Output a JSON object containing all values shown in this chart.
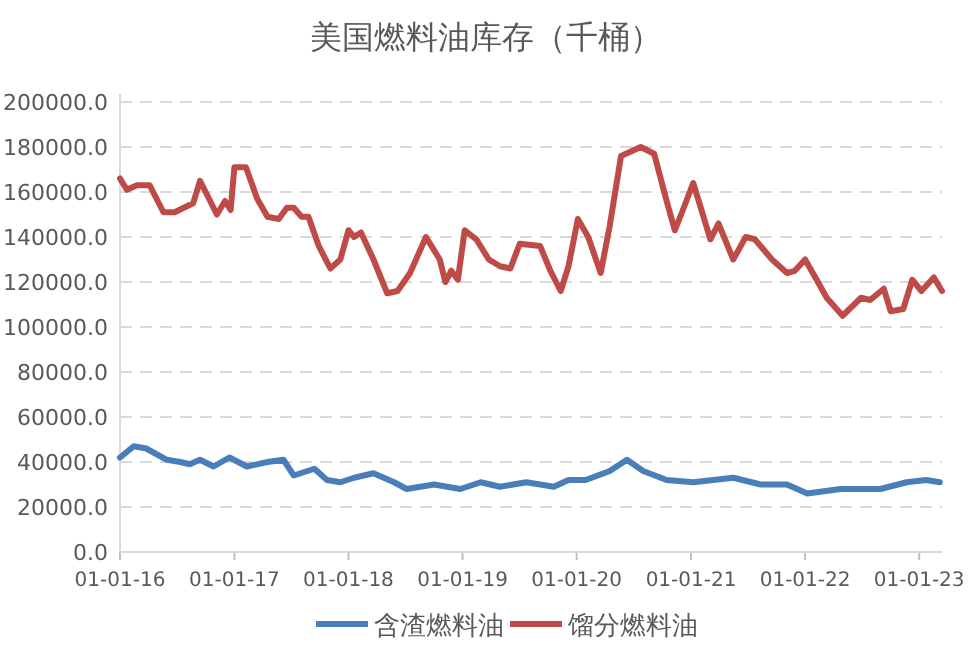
{
  "chart_data": {
    "type": "line",
    "title": "美国燃料油库存（千桶）",
    "xlim": [
      "2016-01-01",
      "2023-03-15"
    ],
    "xticks": [
      {
        "value": "2016-01-01",
        "label": "01-01-16"
      },
      {
        "value": "2017-01-01",
        "label": "01-01-17"
      },
      {
        "value": "2018-01-01",
        "label": "01-01-18"
      },
      {
        "value": "2019-01-01",
        "label": "01-01-19"
      },
      {
        "value": "2020-01-01",
        "label": "01-01-20"
      },
      {
        "value": "2021-01-01",
        "label": "01-01-21"
      },
      {
        "value": "2022-01-01",
        "label": "01-01-22"
      },
      {
        "value": "2023-01-01",
        "label": "01-01-23"
      }
    ],
    "ylim": [
      0,
      200000
    ],
    "yticks": [
      {
        "value": 0,
        "label": "0.0"
      },
      {
        "value": 20000,
        "label": "20000.0"
      },
      {
        "value": 40000,
        "label": "40000.0"
      },
      {
        "value": 60000,
        "label": "60000.0"
      },
      {
        "value": 80000,
        "label": "80000.0"
      },
      {
        "value": 100000,
        "label": "100000.0"
      },
      {
        "value": 120000,
        "label": "120000.0"
      },
      {
        "value": 140000,
        "label": "140000.0"
      },
      {
        "value": 160000,
        "label": "160000.0"
      },
      {
        "value": 180000,
        "label": "180000.0"
      },
      {
        "value": 200000,
        "label": "200000.0"
      }
    ],
    "grid": "y",
    "legend": "bottom",
    "series": [
      {
        "name": "含渣燃料油",
        "color": "#4a7ebb",
        "x": [
          "2016-01-01",
          "2016-02-14",
          "2016-03-25",
          "2016-05-30",
          "2016-07-12",
          "2016-08-11",
          "2016-09-13",
          "2016-10-26",
          "2016-12-16",
          "2017-02-10",
          "2017-04-17",
          "2017-06-07",
          "2017-07-10",
          "2017-09-14",
          "2017-10-24",
          "2017-12-06",
          "2018-01-19",
          "2018-03-22",
          "2018-05-27",
          "2018-07-06",
          "2018-10-02",
          "2018-12-25",
          "2019-02-28",
          "2019-05-01",
          "2019-07-24",
          "2019-10-20",
          "2019-12-06",
          "2020-01-30",
          "2020-04-16",
          "2020-06-10",
          "2020-08-01",
          "2020-10-15",
          "2021-01-08",
          "2021-05-16",
          "2021-08-12",
          "2021-11-04",
          "2022-01-08",
          "2022-04-24",
          "2022-08-30",
          "2022-11-22",
          "2023-01-23",
          "2023-03-08"
        ],
        "values": [
          42000,
          47000,
          46000,
          41000,
          40000,
          39000,
          41000,
          38000,
          42000,
          38000,
          40000,
          41000,
          34000,
          37000,
          32000,
          31000,
          33000,
          35000,
          31000,
          28000,
          30000,
          28000,
          31000,
          29000,
          31000,
          29000,
          32000,
          32000,
          36000,
          41000,
          36000,
          32000,
          31000,
          33000,
          30000,
          30000,
          26000,
          28000,
          28000,
          31000,
          32000,
          31000
        ]
      },
      {
        "name": "馏分燃料油",
        "color": "#be4b48",
        "x": [
          "2016-01-01",
          "2016-01-23",
          "2016-02-24",
          "2016-04-05",
          "2016-05-19",
          "2016-06-24",
          "2016-07-23",
          "2016-08-22",
          "2016-09-13",
          "2016-11-06",
          "2016-12-02",
          "2016-12-20",
          "2017-01-01",
          "2017-02-07",
          "2017-03-15",
          "2017-04-17",
          "2017-05-23",
          "2017-06-18",
          "2017-07-10",
          "2017-08-04",
          "2017-08-26",
          "2017-09-28",
          "2017-11-04",
          "2017-12-06",
          "2018-01-01",
          "2018-01-19",
          "2018-02-10",
          "2018-03-22",
          "2018-05-05",
          "2018-06-07",
          "2018-07-17",
          "2018-09-06",
          "2018-10-20",
          "2018-11-07",
          "2018-11-26",
          "2018-12-17",
          "2019-01-08",
          "2019-02-14",
          "2019-03-26",
          "2019-05-01",
          "2019-06-03",
          "2019-07-03",
          "2019-09-06",
          "2019-10-09",
          "2019-11-11",
          "2019-12-06",
          "2020-01-05",
          "2020-02-07",
          "2020-03-18",
          "2020-04-16",
          "2020-05-22",
          "2020-07-24",
          "2020-09-05",
          "2020-10-15",
          "2020-11-10",
          "2020-12-06",
          "2021-01-08",
          "2021-03-04",
          "2021-03-30",
          "2021-05-16",
          "2021-06-25",
          "2021-07-24",
          "2021-09-17",
          "2021-11-04",
          "2021-11-29",
          "2022-01-01",
          "2022-02-07",
          "2022-03-11",
          "2022-05-01",
          "2022-06-29",
          "2022-07-28",
          "2022-09-10",
          "2022-10-02",
          "2022-11-11",
          "2022-12-10",
          "2023-01-08",
          "2023-02-17",
          "2023-03-15"
        ],
        "values": [
          166000,
          161000,
          163000,
          163000,
          151000,
          151000,
          153000,
          155000,
          165000,
          150000,
          156000,
          152000,
          171000,
          171000,
          157000,
          149000,
          148000,
          153000,
          153000,
          149000,
          149000,
          136000,
          126000,
          130000,
          143000,
          140000,
          142000,
          130000,
          115000,
          116000,
          124000,
          140000,
          130000,
          120000,
          125000,
          121000,
          143000,
          139000,
          130000,
          127000,
          126000,
          137000,
          136000,
          125000,
          116000,
          127000,
          148000,
          140000,
          124000,
          145000,
          176000,
          180000,
          177000,
          156000,
          143000,
          152000,
          164000,
          139000,
          146000,
          130000,
          140000,
          139000,
          130000,
          124000,
          125000,
          130000,
          121000,
          113000,
          105000,
          113000,
          112000,
          117000,
          107000,
          108000,
          121000,
          116000,
          122000,
          116000
        ]
      }
    ]
  }
}
